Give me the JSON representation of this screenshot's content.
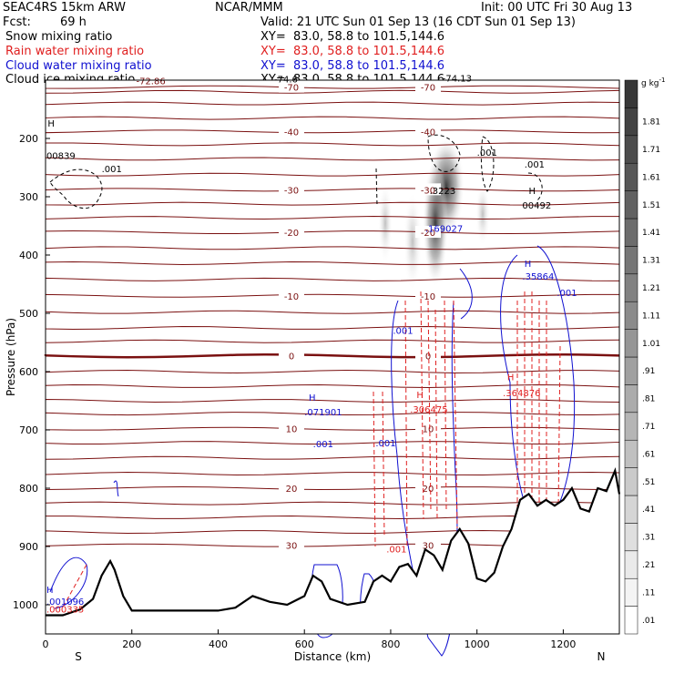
{
  "header": {
    "model": "SEAC4RS 15km ARW",
    "org": "NCAR/MMM",
    "init": "Init: 00 UTC Fri 30 Aug 13",
    "fcst_label": "Fcst:",
    "fcst_value": "69 h",
    "valid": "Valid: 21 UTC Sun 01 Sep 13 (16 CDT Sun 01 Sep 13)"
  },
  "fields": [
    {
      "name": "Snow mixing ratio",
      "xy": "XY=  83.0, 58.8 to 101.5,144.6",
      "color": "#000000"
    },
    {
      "name": "Rain water mixing ratio",
      "xy": "XY=  83.0, 58.8 to 101.5,144.6",
      "color": "#e02020"
    },
    {
      "name": "Cloud water mixing ratio",
      "xy": "XY=  83.0, 58.8 to 101.5,144.6",
      "color": "#1010d0"
    },
    {
      "name": "Cloud ice mixing ratio",
      "xy": "XY=  83.0, 58.8 to 101.5,144.6",
      "color": "#000000"
    }
  ],
  "chart_data": {
    "type": "cross-section",
    "xlabel": "Distance (km)",
    "ylabel": "Pressure (hPa)",
    "xlim": [
      0,
      1330
    ],
    "ylim": [
      1050,
      100
    ],
    "xticks": [
      0,
      200,
      400,
      600,
      800,
      1000,
      1200
    ],
    "yticks": [
      200,
      300,
      400,
      500,
      600,
      700,
      800,
      900,
      1000
    ],
    "left_end": "S",
    "right_end": "N",
    "colorbar": {
      "units": "g kg",
      "units_exp": "-1",
      "labels": [
        ".01",
        ".11",
        ".21",
        ".31",
        ".41",
        ".51",
        ".61",
        ".71",
        ".81",
        ".91",
        "1.01",
        "1.11",
        "1.21",
        "1.31",
        "1.41",
        "1.51",
        "1.61",
        "1.71",
        "1.81"
      ]
    },
    "temperature_contours": [
      {
        "label": "-70",
        "p": 112
      },
      {
        "label": "-40",
        "p": 188
      },
      {
        "label": "-30",
        "p": 288
      },
      {
        "label": "-20",
        "p": 361
      },
      {
        "label": "-10",
        "p": 470
      },
      {
        "label": "0",
        "p": 573
      },
      {
        "label": "10",
        "p": 698
      },
      {
        "label": "20",
        "p": 800
      },
      {
        "label": "30",
        "p": 898
      }
    ],
    "terrain": {
      "x": [
        0,
        40,
        80,
        110,
        130,
        150,
        160,
        180,
        200,
        220,
        250,
        300,
        400,
        440,
        480,
        520,
        560,
        600,
        620,
        640,
        660,
        700,
        740,
        760,
        780,
        800,
        820,
        840,
        860,
        880,
        900,
        920,
        940,
        960,
        980,
        1000,
        1020,
        1040,
        1060,
        1080,
        1100,
        1120,
        1140,
        1160,
        1180,
        1200,
        1220,
        1240,
        1260,
        1280,
        1300,
        1320,
        1330
      ],
      "p": [
        1018,
        1018,
        1008,
        990,
        950,
        925,
        940,
        985,
        1010,
        1010,
        1010,
        1010,
        1010,
        1005,
        985,
        995,
        1000,
        985,
        950,
        960,
        990,
        1000,
        995,
        960,
        950,
        960,
        935,
        930,
        950,
        905,
        915,
        940,
        890,
        870,
        895,
        955,
        960,
        945,
        900,
        870,
        820,
        810,
        830,
        820,
        830,
        820,
        800,
        835,
        840,
        800,
        805,
        770,
        810
      ]
    },
    "labels": [
      {
        "text": "-72.86",
        "x": 210,
        "p": 107,
        "color": "#7a1010"
      },
      {
        "text": "-74.6",
        "x": 530,
        "p": 104,
        "color": "#000000"
      },
      {
        "text": "-74.13",
        "x": 920,
        "p": 102,
        "color": "#000000"
      },
      {
        "text": "H",
        "x": 5,
        "p": 180,
        "color": "#000000"
      },
      {
        "text": "00839",
        "x": 2,
        "p": 235,
        "color": "#000000"
      },
      {
        "text": ".001",
        "x": 130,
        "p": 258,
        "color": "#000000"
      },
      {
        "text": ".001",
        "x": 1000,
        "p": 230,
        "color": "#000000"
      },
      {
        "text": ".001",
        "x": 1110,
        "p": 250,
        "color": "#000000"
      },
      {
        "text": "H",
        "x": 1120,
        "p": 295,
        "color": "#000000"
      },
      {
        "text": "00492",
        "x": 1105,
        "p": 320,
        "color": "#000000"
      },
      {
        "text": ".3223",
        "x": 890,
        "p": 295,
        "color": "#000000"
      },
      {
        "text": ".169027",
        "x": 880,
        "p": 360,
        "color": "#1010d0"
      },
      {
        "text": "H",
        "x": 1110,
        "p": 420,
        "color": "#1010d0"
      },
      {
        "text": ".35864",
        "x": 1105,
        "p": 442,
        "color": "#1010d0"
      },
      {
        "text": ".001",
        "x": 1185,
        "p": 470,
        "color": "#1010d0"
      },
      {
        "text": ".001",
        "x": 805,
        "p": 535,
        "color": "#1010d0"
      },
      {
        "text": "H",
        "x": 1070,
        "p": 615,
        "color": "#e02020"
      },
      {
        "text": ".364876",
        "x": 1060,
        "p": 642,
        "color": "#e02020"
      },
      {
        "text": "H",
        "x": 860,
        "p": 645,
        "color": "#e02020"
      },
      {
        "text": ".306475",
        "x": 845,
        "p": 670,
        "color": "#e02020"
      },
      {
        "text": "H",
        "x": 610,
        "p": 650,
        "color": "#1010d0"
      },
      {
        "text": ".071901",
        "x": 600,
        "p": 675,
        "color": "#1010d0"
      },
      {
        "text": ".001",
        "x": 620,
        "p": 730,
        "color": "#1010d0"
      },
      {
        "text": ".001",
        "x": 765,
        "p": 728,
        "color": "#1010d0"
      },
      {
        "text": ".001",
        "x": 790,
        "p": 910,
        "color": "#e02020"
      },
      {
        "text": "H",
        "x": 2,
        "p": 980,
        "color": "#1010d0"
      },
      {
        "text": ".001096",
        "x": 2,
        "p": 1000,
        "color": "#1010d0"
      },
      {
        "text": ".000335",
        "x": 2,
        "p": 1013,
        "color": "#e02020"
      }
    ]
  }
}
